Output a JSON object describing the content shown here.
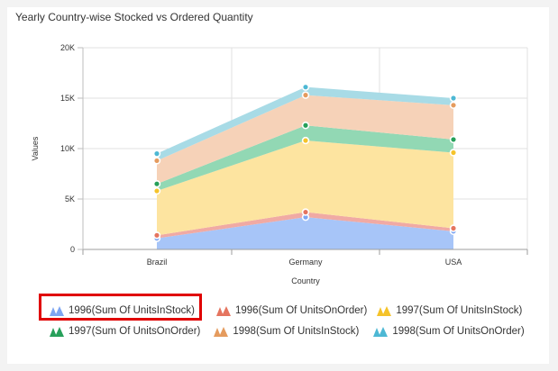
{
  "title": "Yearly Country-wise Stocked vs Ordered Quantity",
  "chart_data": {
    "type": "area",
    "stacked": true,
    "categories": [
      "Brazil",
      "Germany",
      "USA"
    ],
    "xlabel": "Country",
    "ylabel": "Values",
    "ylim": [
      0,
      20000
    ],
    "yticks": [
      0,
      5000,
      10000,
      15000,
      20000
    ],
    "ytick_labels": [
      "0",
      "5K",
      "10K",
      "15K",
      "20K"
    ],
    "grid": true,
    "legend_position": "bottom",
    "series": [
      {
        "name": "1996(Sum Of UnitsInStock)",
        "color": "#a7c5f8",
        "marker": "#7ea6f2",
        "values": [
          1100,
          3200,
          1800
        ]
      },
      {
        "name": "1996(Sum Of UnitsOnOrder)",
        "color": "#f0aaa4",
        "marker": "#e5755f",
        "values": [
          300,
          500,
          300
        ]
      },
      {
        "name": "1997(Sum Of UnitsInStock)",
        "color": "#fde4a0",
        "marker": "#f5c32a",
        "values": [
          4400,
          7100,
          7500
        ]
      },
      {
        "name": "1997(Sum Of UnitsOnOrder)",
        "color": "#92d8b4",
        "marker": "#27a05a",
        "values": [
          700,
          1500,
          1300
        ]
      },
      {
        "name": "1998(Sum Of UnitsInStock)",
        "color": "#f6d2b8",
        "marker": "#e59b5e",
        "values": [
          2300,
          3000,
          3400
        ]
      },
      {
        "name": "1998(Sum Of UnitsOnOrder)",
        "color": "#a8dbe6",
        "marker": "#4db8d4",
        "values": [
          700,
          800,
          700
        ]
      }
    ]
  },
  "highlighted_legend_index": 0
}
